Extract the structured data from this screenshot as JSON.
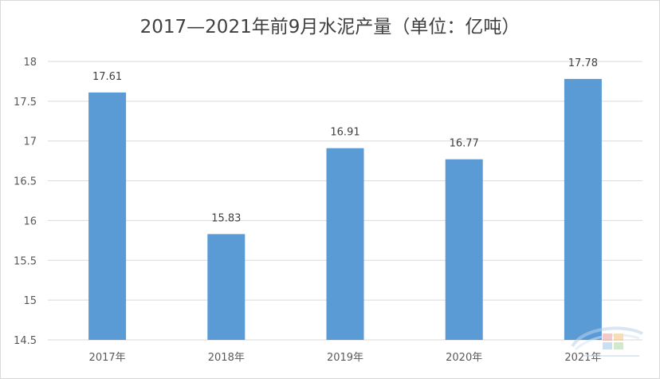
{
  "chart_data": {
    "type": "bar",
    "title": "2017—2021年前9月水泥产量（单位：亿吨）",
    "categories": [
      "2017年",
      "2018年",
      "2019年",
      "2020年",
      "2021年"
    ],
    "series": [
      {
        "values": [
          17.61,
          15.83,
          16.91,
          16.77,
          17.78
        ]
      }
    ],
    "data_labels": [
      "17.61",
      "15.83",
      "16.91",
      "16.77",
      "17.78"
    ],
    "ylim": [
      14.5,
      18
    ],
    "yticks": [
      14.5,
      15,
      15.5,
      16,
      16.5,
      17,
      17.5,
      18
    ],
    "ytick_labels": [
      "14.5",
      "15",
      "15.5",
      "16",
      "16.5",
      "17",
      "17.5",
      "18"
    ],
    "grid": true,
    "legend": "none",
    "colors": {
      "bar": "#5b9bd5",
      "grid": "#d9d9d9",
      "text": "#595959"
    }
  },
  "watermark": {
    "icon": "ccement-logo-icon"
  }
}
